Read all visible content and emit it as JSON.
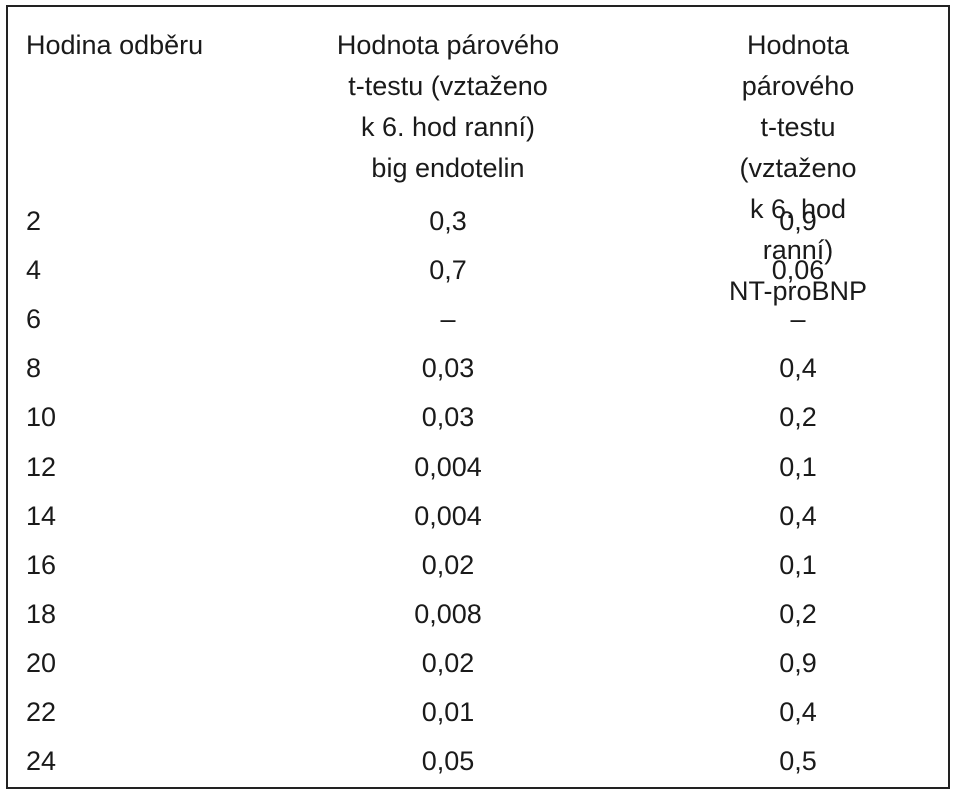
{
  "table": {
    "header": [
      "Hodina odběru",
      "Hodnota párového\nt-testu  (vztaženo\nk 6. hod ranní)\nbig endotelin",
      "Hodnota párového\nt-testu (vztaženo\nk 6. hod ranní)\nNT-proBNP"
    ],
    "rows": [
      [
        "2",
        "0,3",
        "0,9"
      ],
      [
        "4",
        "0,7",
        "0,06"
      ],
      [
        "6",
        "–",
        "–"
      ],
      [
        "8",
        "0,03",
        "0,4"
      ],
      [
        "10",
        "0,03",
        "0,2"
      ],
      [
        "12",
        "0,004",
        "0,1"
      ],
      [
        "14",
        "0,004",
        "0,4"
      ],
      [
        "16",
        "0,02",
        "0,1"
      ],
      [
        "18",
        "0,008",
        "0,2"
      ],
      [
        "20",
        "0,02",
        "0,9"
      ],
      [
        "22",
        "0,01",
        "0,4"
      ],
      [
        "24",
        "0,05",
        "0,5"
      ]
    ]
  }
}
